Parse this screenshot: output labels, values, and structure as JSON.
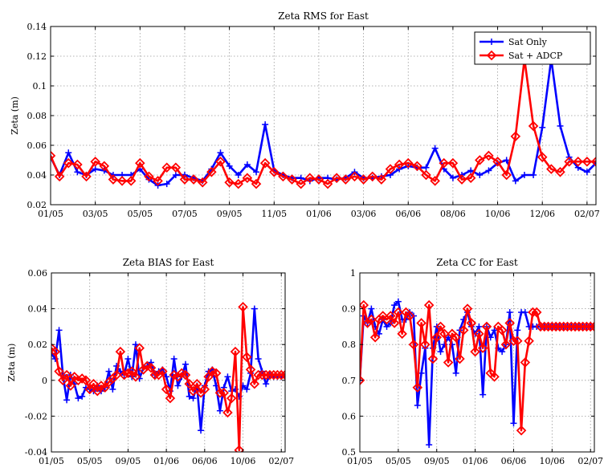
{
  "chart_data": [
    {
      "type": "line",
      "title": "Zeta RMS for East",
      "ylabel": "Zeta (m)",
      "xlabel": "",
      "ylim": [
        0.02,
        0.14
      ],
      "xlim": [
        0,
        61
      ],
      "yticks": [
        0.02,
        0.04,
        0.06,
        0.08,
        0.1,
        0.12,
        0.14
      ],
      "ytick_labels": [
        "0.02",
        "0.04",
        "0.06",
        "0.08",
        "0.1",
        "0.12",
        "0.14"
      ],
      "xticks": [
        0,
        5,
        10,
        15,
        20,
        25,
        30,
        35,
        40,
        45,
        50,
        55,
        60
      ],
      "xtick_labels": [
        "01/05",
        "03/05",
        "05/05",
        "07/05",
        "09/05",
        "11/05",
        "01/06",
        "03/06",
        "06/06",
        "08/06",
        "10/06",
        "12/06",
        "02/07"
      ],
      "grid": true,
      "legend": "top-right",
      "series": [
        {
          "name": "Sat Only",
          "color": "#0000ff",
          "marker": "plus",
          "x": [
            0,
            1,
            2,
            3,
            4,
            5,
            6,
            7,
            8,
            9,
            10,
            11,
            12,
            13,
            14,
            15,
            16,
            17,
            18,
            19,
            20,
            21,
            22,
            23,
            24,
            25,
            26,
            27,
            28,
            29,
            30,
            31,
            32,
            33,
            34,
            35,
            36,
            37,
            38,
            39,
            40,
            41,
            42,
            43,
            44,
            45,
            46,
            47,
            48,
            49,
            50,
            51,
            52,
            53,
            54,
            55,
            56,
            57,
            58,
            59,
            60,
            61
          ],
          "y": [
            0.052,
            0.04,
            0.055,
            0.042,
            0.04,
            0.044,
            0.043,
            0.04,
            0.04,
            0.04,
            0.044,
            0.037,
            0.033,
            0.034,
            0.04,
            0.04,
            0.038,
            0.036,
            0.044,
            0.055,
            0.046,
            0.04,
            0.047,
            0.042,
            0.074,
            0.043,
            0.04,
            0.038,
            0.038,
            0.036,
            0.038,
            0.038,
            0.037,
            0.038,
            0.042,
            0.038,
            0.038,
            0.039,
            0.04,
            0.044,
            0.046,
            0.045,
            0.045,
            0.058,
            0.044,
            0.038,
            0.04,
            0.043,
            0.04,
            0.043,
            0.048,
            0.05,
            0.036,
            0.04,
            0.04,
            0.072,
            0.118,
            0.073,
            0.052,
            0.045,
            0.042,
            0.048
          ]
        },
        {
          "name": "Sat + ADCP",
          "color": "#ff0000",
          "marker": "diamond",
          "x": [
            0,
            1,
            2,
            3,
            4,
            5,
            6,
            7,
            8,
            9,
            10,
            11,
            12,
            13,
            14,
            15,
            16,
            17,
            18,
            19,
            20,
            21,
            22,
            23,
            24,
            25,
            26,
            27,
            28,
            29,
            30,
            31,
            32,
            33,
            34,
            35,
            36,
            37,
            38,
            39,
            40,
            41,
            42,
            43,
            44,
            45,
            46,
            47,
            48,
            49,
            50,
            51,
            52,
            53,
            54,
            55,
            56,
            57,
            58,
            59,
            60,
            61
          ],
          "y": [
            0.053,
            0.039,
            0.048,
            0.047,
            0.039,
            0.049,
            0.046,
            0.037,
            0.036,
            0.036,
            0.048,
            0.039,
            0.036,
            0.045,
            0.045,
            0.037,
            0.037,
            0.035,
            0.042,
            0.049,
            0.035,
            0.034,
            0.038,
            0.034,
            0.048,
            0.042,
            0.039,
            0.037,
            0.034,
            0.038,
            0.037,
            0.034,
            0.038,
            0.037,
            0.039,
            0.037,
            0.039,
            0.037,
            0.044,
            0.047,
            0.048,
            0.046,
            0.04,
            0.036,
            0.048,
            0.048,
            0.037,
            0.038,
            0.05,
            0.053,
            0.049,
            0.04,
            0.066,
            0.118,
            0.073,
            0.052,
            0.044,
            0.042,
            0.049,
            0.049,
            0.049,
            0.049
          ]
        }
      ]
    },
    {
      "type": "line",
      "title": "Zeta BIAS for East",
      "ylabel": "Zeta (m)",
      "xlabel": "",
      "ylim": [
        -0.04,
        0.06
      ],
      "xlim": [
        0,
        61
      ],
      "yticks": [
        -0.04,
        -0.02,
        0,
        0.02,
        0.04,
        0.06
      ],
      "ytick_labels": [
        "-0.04",
        "-0.02",
        "0",
        "0.02",
        "0.04",
        "0.06"
      ],
      "xticks": [
        0,
        10,
        20,
        30,
        40,
        50,
        60
      ],
      "xtick_labels": [
        "01/05",
        "05/05",
        "09/05",
        "01/06",
        "06/06",
        "10/06",
        "02/07"
      ],
      "grid": true,
      "series": [
        {
          "name": "Sat Only",
          "color": "#0000ff",
          "marker": "plus",
          "x": [
            0,
            1,
            2,
            3,
            4,
            5,
            6,
            7,
            8,
            9,
            10,
            11,
            12,
            13,
            14,
            15,
            16,
            17,
            18,
            19,
            20,
            21,
            22,
            23,
            24,
            25,
            26,
            27,
            28,
            29,
            30,
            31,
            32,
            33,
            34,
            35,
            36,
            37,
            38,
            39,
            40,
            41,
            42,
            43,
            44,
            45,
            46,
            47,
            48,
            49,
            50,
            51,
            52,
            53,
            54,
            55,
            56,
            57,
            58,
            59,
            60,
            61
          ],
          "y": [
            0.015,
            0.012,
            0.028,
            0.003,
            -0.011,
            0.003,
            -0.002,
            -0.01,
            -0.009,
            -0.004,
            -0.005,
            -0.006,
            -0.003,
            -0.006,
            -0.004,
            0.005,
            -0.005,
            0.008,
            0.005,
            0.003,
            0.012,
            0.002,
            0.02,
            0.001,
            0.007,
            0.008,
            0.01,
            0.003,
            0.005,
            0.006,
            0.002,
            -0.006,
            0.012,
            -0.003,
            0.002,
            0.009,
            -0.009,
            -0.01,
            -0.003,
            -0.028,
            -0.003,
            0.005,
            0.006,
            -0.003,
            -0.017,
            -0.004,
            0.002,
            -0.006,
            -0.005,
            -0.009,
            -0.003,
            -0.005,
            0.004,
            0.04,
            0.012,
            0.005,
            -0.002,
            0.003,
            0.002,
            0.002,
            0.002,
            0.002
          ]
        },
        {
          "name": "Sat + ADCP",
          "color": "#ff0000",
          "marker": "diamond",
          "x": [
            0,
            1,
            2,
            3,
            4,
            5,
            6,
            7,
            8,
            9,
            10,
            11,
            12,
            13,
            14,
            15,
            16,
            17,
            18,
            19,
            20,
            21,
            22,
            23,
            24,
            25,
            26,
            27,
            28,
            29,
            30,
            31,
            32,
            33,
            34,
            35,
            36,
            37,
            38,
            39,
            40,
            41,
            42,
            43,
            44,
            45,
            46,
            47,
            48,
            49,
            50,
            51,
            52,
            53,
            54,
            55,
            56,
            57,
            58,
            59,
            60,
            61
          ],
          "y": [
            0.018,
            0.016,
            0.005,
            0.0,
            0.003,
            -0.003,
            0.002,
            0.0,
            0.001,
            0.0,
            -0.005,
            -0.002,
            -0.006,
            -0.003,
            -0.004,
            -0.001,
            0.001,
            0.003,
            0.016,
            0.003,
            0.004,
            0.005,
            0.002,
            0.018,
            0.006,
            0.008,
            0.007,
            0.003,
            0.003,
            0.005,
            -0.005,
            -0.01,
            0.003,
            0.002,
            0.004,
            0.003,
            -0.002,
            -0.006,
            -0.002,
            -0.007,
            -0.005,
            0.002,
            0.005,
            0.004,
            -0.007,
            -0.007,
            -0.018,
            -0.01,
            0.016,
            -0.039,
            0.041,
            0.013,
            0.006,
            -0.002,
            0.003,
            0.003,
            0.003,
            0.003,
            0.003,
            0.003,
            0.003,
            0.003
          ]
        }
      ]
    },
    {
      "type": "line",
      "title": "Zeta CC for East",
      "ylabel": "",
      "xlabel": "",
      "ylim": [
        0.5,
        1.0
      ],
      "xlim": [
        0,
        61
      ],
      "yticks": [
        0.5,
        0.6,
        0.7,
        0.8,
        0.9,
        1.0
      ],
      "ytick_labels": [
        "0.5",
        "0.6",
        "0.7",
        "0.8",
        "0.9",
        "1"
      ],
      "xticks": [
        0,
        10,
        20,
        30,
        40,
        50,
        60
      ],
      "xtick_labels": [
        "01/05",
        "05/05",
        "09/05",
        "01/06",
        "06/06",
        "10/06",
        "02/07"
      ],
      "grid": true,
      "series": [
        {
          "name": "Sat Only",
          "color": "#0000ff",
          "marker": "plus",
          "x": [
            0,
            1,
            2,
            3,
            4,
            5,
            6,
            7,
            8,
            9,
            10,
            11,
            12,
            13,
            14,
            15,
            16,
            17,
            18,
            19,
            20,
            21,
            22,
            23,
            24,
            25,
            26,
            27,
            28,
            29,
            30,
            31,
            32,
            33,
            34,
            35,
            36,
            37,
            38,
            39,
            40,
            41,
            42,
            43,
            44,
            45,
            46,
            47,
            48,
            49,
            50,
            51,
            52,
            53,
            54,
            55,
            56,
            57,
            58,
            59,
            60,
            61
          ],
          "y": [
            0.7,
            0.88,
            0.86,
            0.9,
            0.85,
            0.83,
            0.87,
            0.85,
            0.86,
            0.91,
            0.92,
            0.87,
            0.87,
            0.89,
            0.88,
            0.63,
            0.72,
            0.79,
            0.52,
            0.79,
            0.85,
            0.78,
            0.8,
            0.82,
            0.8,
            0.72,
            0.84,
            0.87,
            0.89,
            0.85,
            0.83,
            0.85,
            0.66,
            0.85,
            0.82,
            0.84,
            0.79,
            0.78,
            0.8,
            0.89,
            0.58,
            0.84,
            0.89,
            0.89,
            0.85,
            0.85,
            0.85,
            0.85,
            0.85,
            0.85,
            0.85,
            0.85,
            0.85,
            0.85,
            0.85,
            0.85,
            0.85,
            0.85,
            0.85,
            0.85,
            0.85,
            0.85
          ]
        },
        {
          "name": "Sat + ADCP",
          "color": "#ff0000",
          "marker": "diamond",
          "x": [
            0,
            1,
            2,
            3,
            4,
            5,
            6,
            7,
            8,
            9,
            10,
            11,
            12,
            13,
            14,
            15,
            16,
            17,
            18,
            19,
            20,
            21,
            22,
            23,
            24,
            25,
            26,
            27,
            28,
            29,
            30,
            31,
            32,
            33,
            34,
            35,
            36,
            37,
            38,
            39,
            40,
            41,
            42,
            43,
            44,
            45,
            46,
            47,
            48,
            49,
            50,
            51,
            52,
            53,
            54,
            55,
            56,
            57,
            58,
            59,
            60,
            61
          ],
          "y": [
            0.7,
            0.91,
            0.86,
            0.87,
            0.82,
            0.87,
            0.88,
            0.87,
            0.88,
            0.86,
            0.89,
            0.83,
            0.89,
            0.88,
            0.8,
            0.68,
            0.86,
            0.8,
            0.91,
            0.76,
            0.82,
            0.85,
            0.83,
            0.75,
            0.83,
            0.82,
            0.76,
            0.84,
            0.9,
            0.86,
            0.78,
            0.83,
            0.79,
            0.85,
            0.72,
            0.71,
            0.85,
            0.84,
            0.8,
            0.86,
            0.81,
            0.81,
            0.56,
            0.75,
            0.81,
            0.89,
            0.89,
            0.85,
            0.85,
            0.85,
            0.85,
            0.85,
            0.85,
            0.85,
            0.85,
            0.85,
            0.85,
            0.85,
            0.85,
            0.85,
            0.85,
            0.85
          ]
        }
      ]
    }
  ]
}
